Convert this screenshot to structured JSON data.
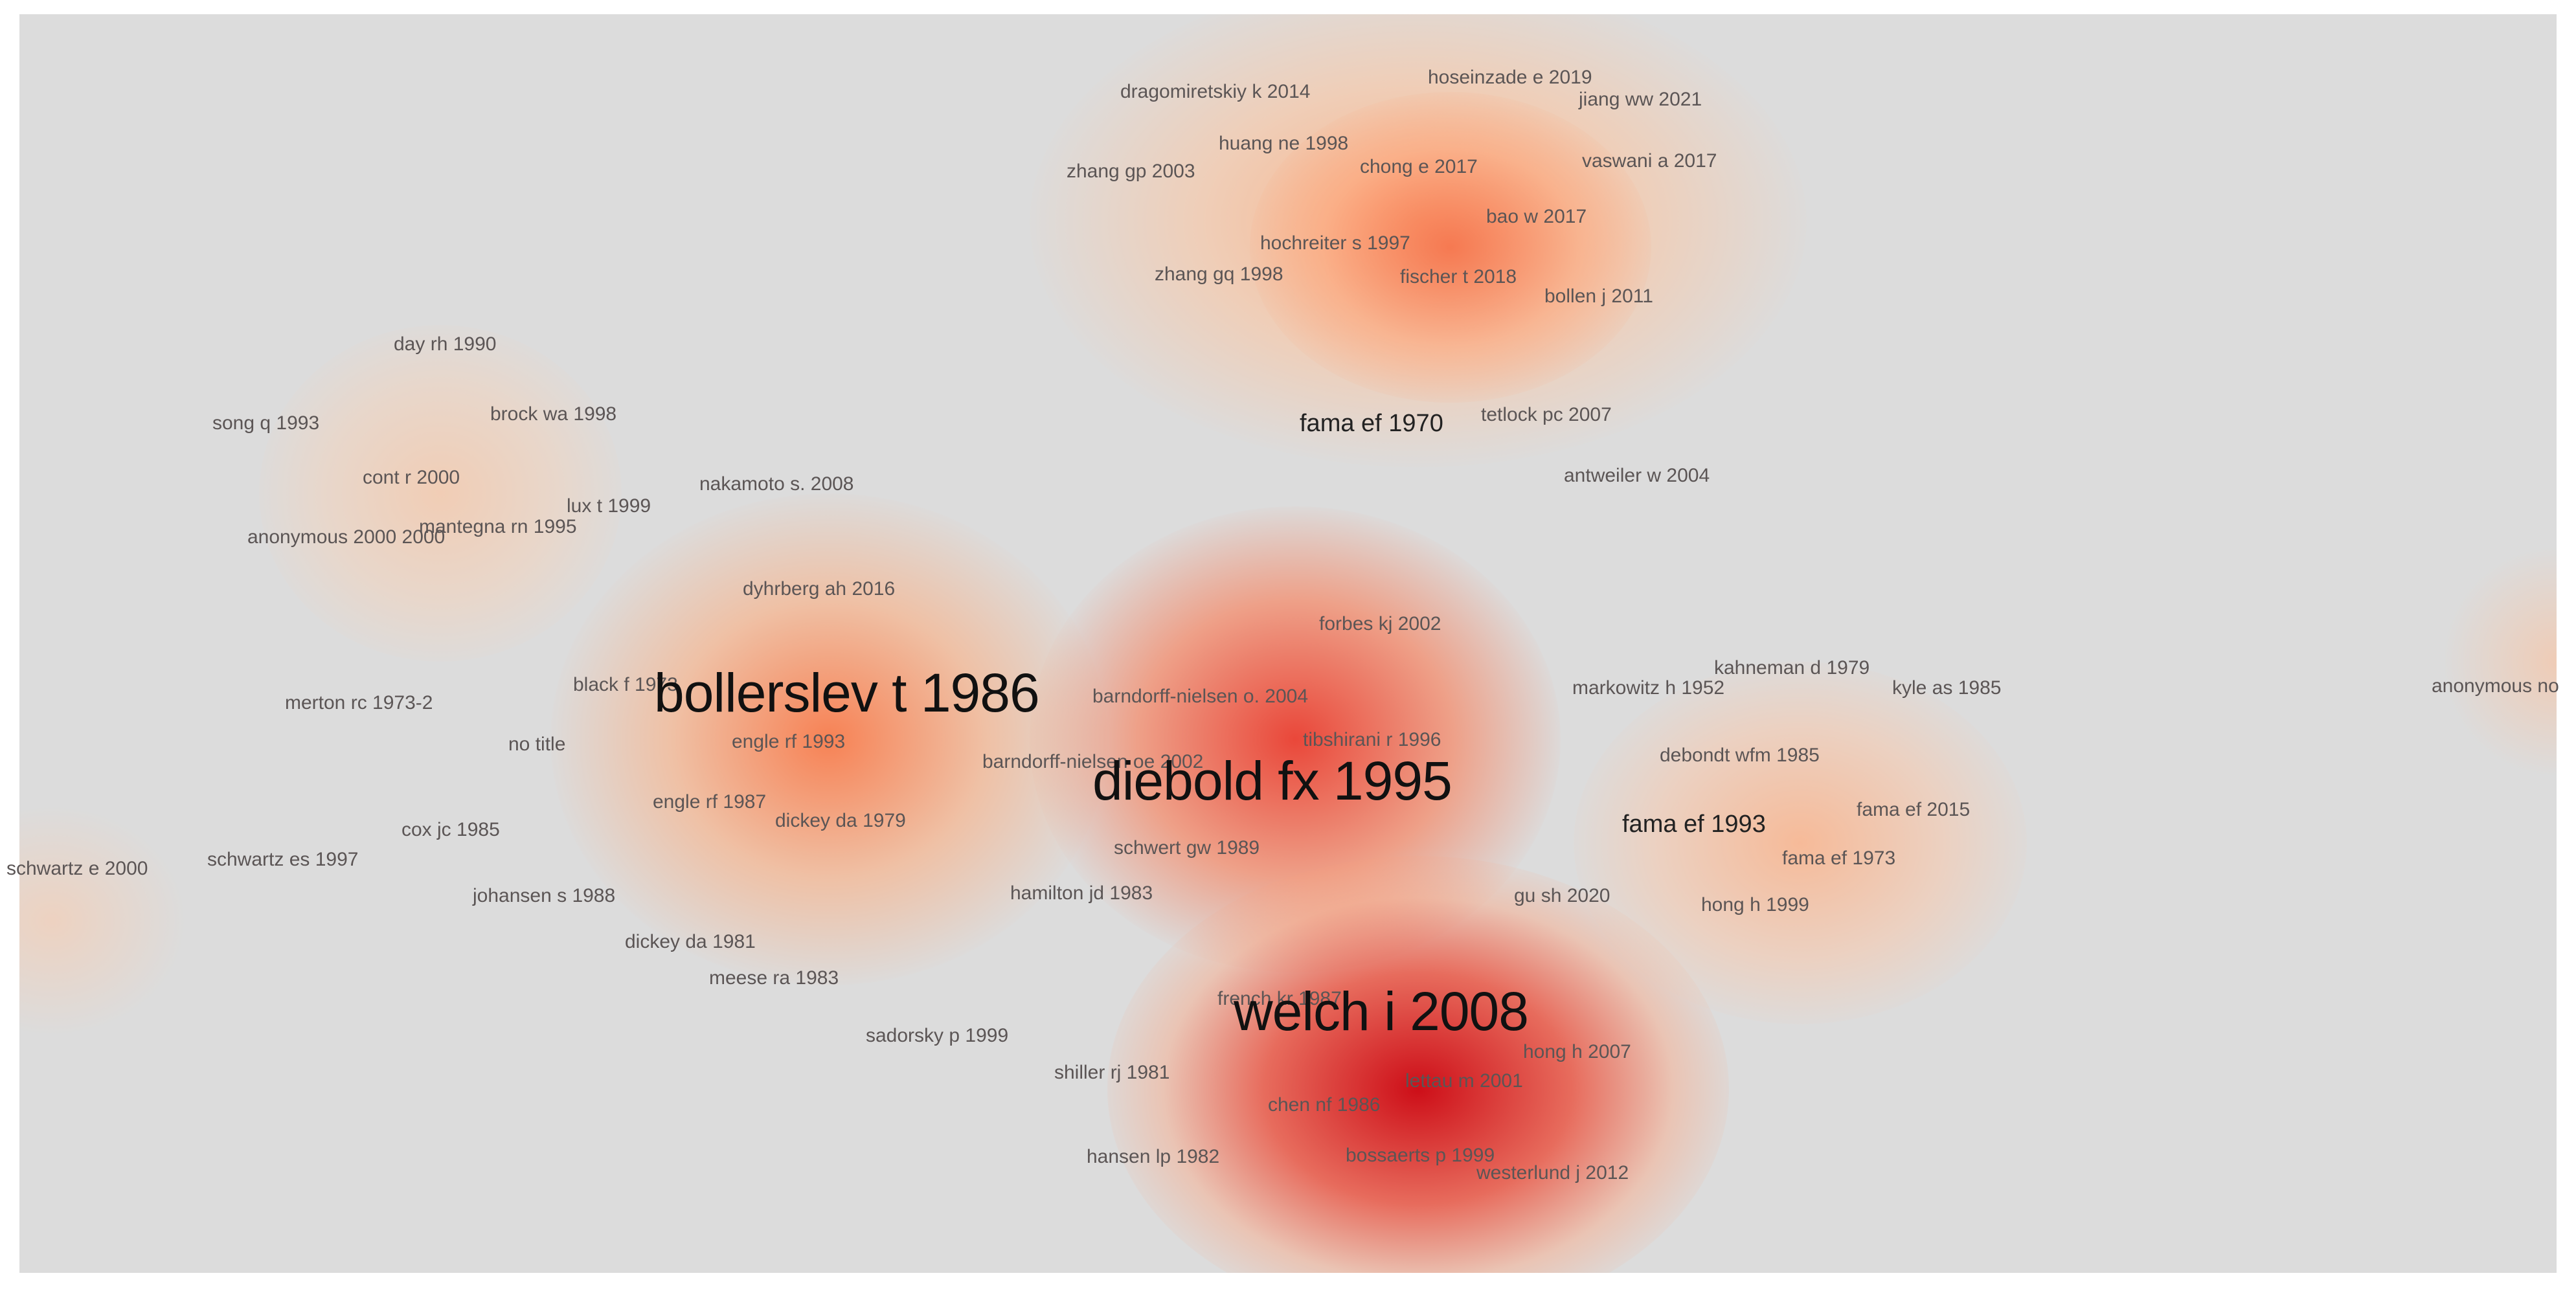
{
  "labels": [
    {
      "text": "dragomiretskiy k 2014",
      "weight": 1
    },
    {
      "text": "hoseinzade e 2019",
      "weight": 1
    },
    {
      "text": "jiang ww 2021",
      "weight": 1
    },
    {
      "text": "huang ne 1998",
      "weight": 1
    },
    {
      "text": "zhang gp 2003",
      "weight": 1
    },
    {
      "text": "chong e 2017",
      "weight": 1
    },
    {
      "text": "vaswani a 2017",
      "weight": 1
    },
    {
      "text": "bao w 2017",
      "weight": 1
    },
    {
      "text": "hochreiter s 1997",
      "weight": 1
    },
    {
      "text": "zhang gq 1998",
      "weight": 1
    },
    {
      "text": "fischer t 2018",
      "weight": 1
    },
    {
      "text": "bollen j 2011",
      "weight": 1
    },
    {
      "text": "day rh 1990",
      "weight": 1
    },
    {
      "text": "song q 1993",
      "weight": 1
    },
    {
      "text": "brock wa 1998",
      "weight": 1
    },
    {
      "text": "fama ef 1970",
      "weight": 2
    },
    {
      "text": "tetlock pc 2007",
      "weight": 1
    },
    {
      "text": "cont r 2000",
      "weight": 1
    },
    {
      "text": "nakamoto s. 2008",
      "weight": 1
    },
    {
      "text": "lux t 1999",
      "weight": 1
    },
    {
      "text": "antweiler w 2004",
      "weight": 1
    },
    {
      "text": "anonymous 2000 2000",
      "weight": 1
    },
    {
      "text": "mantegna rn 1995",
      "weight": 1
    },
    {
      "text": "dyhrberg ah 2016",
      "weight": 1
    },
    {
      "text": "forbes kj 2002",
      "weight": 1
    },
    {
      "text": "kahneman d 1979",
      "weight": 1
    },
    {
      "text": "black f 1973",
      "weight": 1
    },
    {
      "text": "bollerslev t 1986",
      "weight": 3
    },
    {
      "text": "markowitz h 1952",
      "weight": 1
    },
    {
      "text": "kyle as 1985",
      "weight": 1
    },
    {
      "text": "anonymous no",
      "weight": 1
    },
    {
      "text": "barndorff-nielsen o. 2004",
      "weight": 1
    },
    {
      "text": "merton rc 1973-2",
      "weight": 1
    },
    {
      "text": "tibshirani r 1996",
      "weight": 1
    },
    {
      "text": "no title",
      "weight": 1
    },
    {
      "text": "engle rf 1993",
      "weight": 1
    },
    {
      "text": "debondt wfm 1985",
      "weight": 1
    },
    {
      "text": "barndorff-nielsen oe 2002",
      "weight": 1
    },
    {
      "text": "diebold fx 1995",
      "weight": 3
    },
    {
      "text": "engle rf 1987",
      "weight": 1
    },
    {
      "text": "fama ef 2015",
      "weight": 1
    },
    {
      "text": "dickey da 1979",
      "weight": 1
    },
    {
      "text": "fama ef 1993",
      "weight": 2
    },
    {
      "text": "cox jc 1985",
      "weight": 1
    },
    {
      "text": "schwartz e 2000",
      "weight": 1
    },
    {
      "text": "schwert gw 1989",
      "weight": 1
    },
    {
      "text": "schwartz es 1997",
      "weight": 1
    },
    {
      "text": "fama ef 1973",
      "weight": 1
    },
    {
      "text": "johansen s 1988",
      "weight": 1
    },
    {
      "text": "hamilton jd 1983",
      "weight": 1
    },
    {
      "text": "gu sh 2020",
      "weight": 1
    },
    {
      "text": "hong h 1999",
      "weight": 1
    },
    {
      "text": "dickey da 1981",
      "weight": 1
    },
    {
      "text": "meese ra 1983",
      "weight": 1
    },
    {
      "text": "french kr 1987",
      "weight": 1
    },
    {
      "text": "welch i 2008",
      "weight": 3
    },
    {
      "text": "sadorsky p 1999",
      "weight": 1
    },
    {
      "text": "hong h 2007",
      "weight": 1
    },
    {
      "text": "shiller rj 1981",
      "weight": 1
    },
    {
      "text": "lettau m 2001",
      "weight": 1
    },
    {
      "text": "chen nf 1986",
      "weight": 1
    },
    {
      "text": "hansen lp 1982",
      "weight": 1
    },
    {
      "text": "bossaerts p 1999",
      "weight": 1
    },
    {
      "text": "westerlund j 2012",
      "weight": 1
    }
  ]
}
